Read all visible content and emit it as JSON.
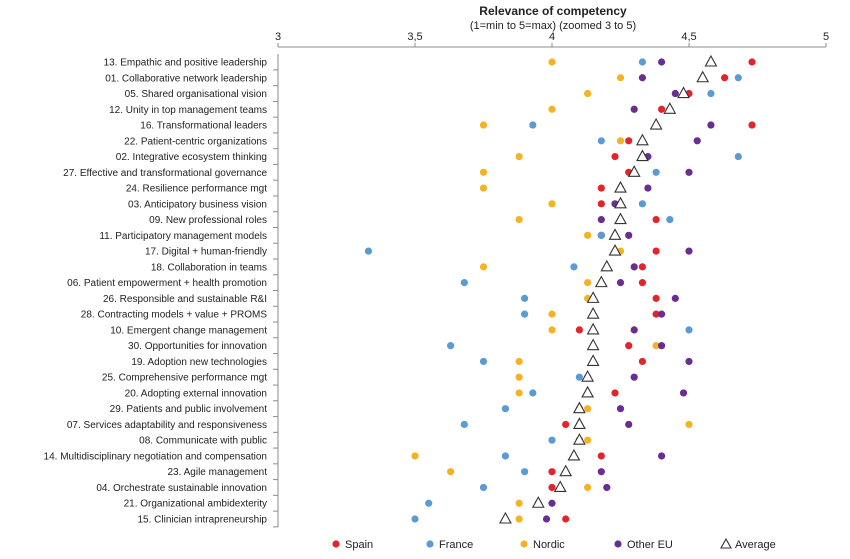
{
  "chart_data": {
    "type": "scatter",
    "title": "Relevance of competency",
    "subtitle": "(1=min to 5=max) (zoomed 3 to 5)",
    "xlim": [
      3,
      5
    ],
    "xticks": [
      {
        "value": 3,
        "label": "3"
      },
      {
        "value": 3.5,
        "label": "3,5"
      },
      {
        "value": 4,
        "label": "4"
      },
      {
        "value": 4.5,
        "label": "4,5"
      },
      {
        "value": 5,
        "label": "5"
      }
    ],
    "x_axis_position": "top",
    "grid": false,
    "legend_position": "bottom",
    "categories": [
      "13. Empathic and positive leadership",
      "01. Collaborative network leadership",
      "05. Shared organisational vision",
      "12. Unity in top management teams",
      "16. Transformational leaders",
      "22. Patient-centric organizations",
      "02. Integrative ecosystem thinking",
      "27. Effective and transformational governance",
      "24. Resilience performance mgt",
      "03. Anticipatory business vision",
      "09. New professional roles",
      "11. Participatory management models",
      "17. Digital + human-friendly",
      "18. Collaboration in teams",
      "06. Patient empowerment + health promotion",
      "26. Responsible and sustainable R&I",
      "28. Contracting models + value + PROMS",
      "10. Emergent change management",
      "30. Opportunities for innovation",
      "19. Adoption new technologies",
      "25. Comprehensive performance mgt",
      "20. Adopting external innovation",
      "29. Patients and public involvement",
      "07. Services adaptability and responsiveness",
      "08. Communicate with public",
      "14. Multidisciplinary negotiation and compensation",
      "23. Agile management",
      "04. Orchestrate sustainable innovation",
      "21. Organizational ambidexterity",
      "15. Clinician intrapreneurship"
    ],
    "series": [
      {
        "name": "Spain",
        "color": "#e3242b",
        "marker": "circle",
        "values": [
          4.73,
          4.63,
          4.5,
          4.4,
          4.73,
          4.28,
          4.23,
          4.28,
          4.18,
          4.18,
          4.38,
          4.18,
          4.38,
          4.33,
          4.33,
          4.38,
          4.38,
          4.1,
          4.28,
          4.33,
          4.13,
          4.23,
          4.1,
          4.05,
          4.1,
          4.18,
          4.0,
          4.0,
          3.95,
          4.05
        ]
      },
      {
        "name": "France",
        "color": "#5b9bd5",
        "marker": "circle",
        "values": [
          4.33,
          4.68,
          4.58,
          4.43,
          3.93,
          4.18,
          4.68,
          4.38,
          4.25,
          4.33,
          4.43,
          4.18,
          3.33,
          4.08,
          3.68,
          3.9,
          3.9,
          4.5,
          3.63,
          3.75,
          4.1,
          3.93,
          3.83,
          3.68,
          4.0,
          3.83,
          3.9,
          3.75,
          3.55,
          3.5
        ]
      },
      {
        "name": "Nordic",
        "color": "#f5b324",
        "marker": "circle",
        "values": [
          4.0,
          4.25,
          4.13,
          4.0,
          3.75,
          4.25,
          3.88,
          3.75,
          3.75,
          4.0,
          3.88,
          4.13,
          4.25,
          3.75,
          4.13,
          4.13,
          4.0,
          4.0,
          4.38,
          3.88,
          3.88,
          3.88,
          4.13,
          4.5,
          4.13,
          3.5,
          3.63,
          4.13,
          3.88,
          3.88
        ]
      },
      {
        "name": "Other EU",
        "color": "#6a2d91",
        "marker": "circle",
        "values": [
          4.4,
          4.33,
          4.45,
          4.3,
          4.58,
          4.53,
          4.35,
          4.5,
          4.35,
          4.23,
          4.18,
          4.28,
          4.5,
          4.3,
          4.25,
          4.45,
          4.4,
          4.3,
          4.4,
          4.5,
          4.3,
          4.48,
          4.25,
          4.28,
          4.1,
          4.4,
          4.18,
          4.2,
          4.0,
          3.98
        ]
      },
      {
        "name": "Average",
        "color": "#333333",
        "marker": "triangle",
        "values": [
          4.58,
          4.55,
          4.48,
          4.43,
          4.38,
          4.33,
          4.33,
          4.3,
          4.25,
          4.25,
          4.25,
          4.23,
          4.23,
          4.2,
          4.18,
          4.15,
          4.15,
          4.15,
          4.15,
          4.15,
          4.13,
          4.13,
          4.1,
          4.1,
          4.1,
          4.08,
          4.05,
          4.03,
          3.95,
          3.83
        ]
      }
    ]
  }
}
